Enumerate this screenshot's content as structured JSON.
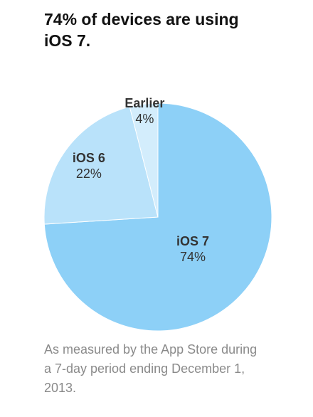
{
  "chart_data": {
    "type": "pie",
    "title": "74% of devices are using iOS 7.",
    "categories": [
      "iOS 7",
      "iOS 6",
      "Earlier"
    ],
    "values": [
      74,
      22,
      4
    ],
    "value_labels": [
      "74%",
      "22%",
      "4%"
    ],
    "colors": [
      "#8dd0f7",
      "#b9e2fa",
      "#d3edfc"
    ],
    "caption": "As measured by the App Store during a 7-day period ending December 1, 2013."
  }
}
